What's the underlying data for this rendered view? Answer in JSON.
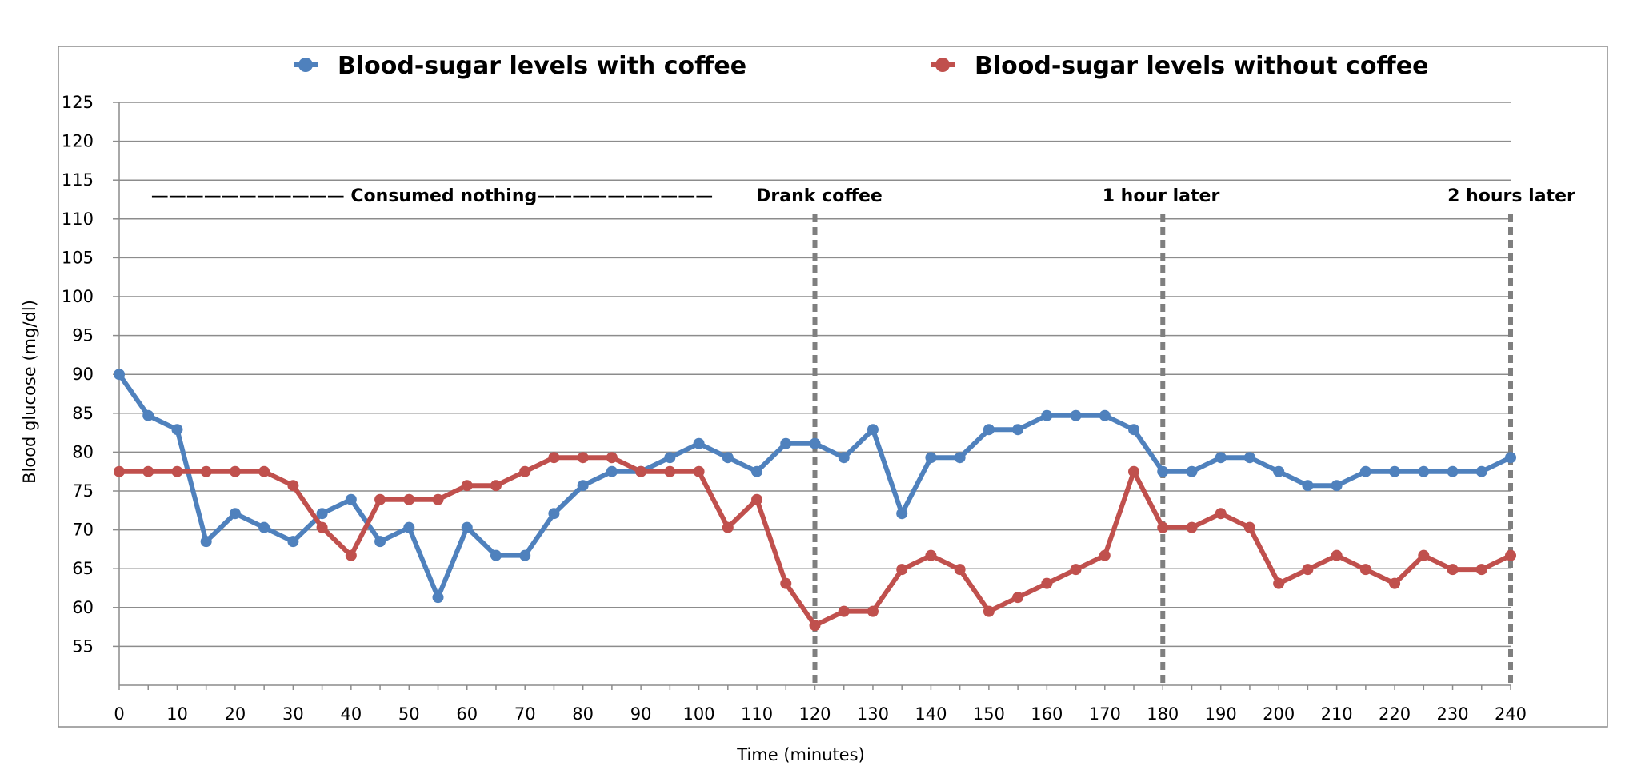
{
  "chart_data": {
    "type": "line",
    "title": "",
    "xlabel": "Time (minutes)",
    "ylabel": "Blood glucose (mg/dl)",
    "xlim": [
      0,
      240
    ],
    "ylim": [
      50,
      125
    ],
    "x_ticks": [
      0,
      10,
      20,
      30,
      40,
      50,
      60,
      70,
      80,
      90,
      100,
      110,
      120,
      130,
      140,
      150,
      160,
      170,
      180,
      190,
      200,
      210,
      220,
      230,
      240
    ],
    "y_ticks": [
      55,
      60,
      65,
      70,
      75,
      80,
      85,
      90,
      95,
      100,
      105,
      110,
      115,
      120,
      125
    ],
    "grid": true,
    "legend_position": "top",
    "x": [
      0,
      5,
      10,
      15,
      20,
      25,
      30,
      35,
      40,
      45,
      50,
      55,
      60,
      65,
      70,
      75,
      80,
      85,
      90,
      95,
      100,
      105,
      110,
      115,
      120,
      125,
      130,
      135,
      140,
      145,
      150,
      155,
      160,
      165,
      170,
      175,
      180,
      185,
      190,
      195,
      200,
      205,
      210,
      215,
      220,
      225,
      230,
      235,
      240
    ],
    "series": [
      {
        "name": "Blood-sugar levels with coffee",
        "color": "#4F81BD",
        "values": [
          90,
          84.7,
          82.9,
          68.5,
          72.1,
          70.3,
          68.5,
          72.1,
          73.9,
          68.5,
          70.3,
          61.3,
          70.3,
          66.7,
          66.7,
          72.1,
          75.7,
          77.5,
          77.5,
          79.3,
          81.1,
          79.3,
          77.5,
          81.1,
          81.1,
          79.3,
          82.9,
          72.1,
          79.3,
          79.3,
          82.9,
          82.9,
          84.7,
          84.7,
          84.7,
          82.9,
          77.5,
          77.5,
          79.3,
          79.3,
          77.5,
          75.7,
          75.7,
          77.5,
          77.5,
          77.5,
          77.5,
          77.5,
          79.3
        ]
      },
      {
        "name": "Blood-sugar levels without coffee",
        "color": "#C0504D",
        "values": [
          77.5,
          77.5,
          77.5,
          77.5,
          77.5,
          77.5,
          75.7,
          70.3,
          66.7,
          73.9,
          73.9,
          73.9,
          75.7,
          75.7,
          77.5,
          79.3,
          79.3,
          79.3,
          77.5,
          77.5,
          77.5,
          70.3,
          73.9,
          63.1,
          57.7,
          59.5,
          59.5,
          64.9,
          66.7,
          64.9,
          59.5,
          61.3,
          63.1,
          64.9,
          66.7,
          77.5,
          70.3,
          70.3,
          72.1,
          70.3,
          63.1,
          64.9,
          66.7,
          64.9,
          63.1,
          66.7,
          64.9,
          64.9,
          66.7
        ]
      }
    ],
    "annotations": [
      {
        "text": "——————————— Consumed nothing——————————",
        "x": 0
      },
      {
        "text": "Drank coffee",
        "x": 120
      },
      {
        "text": "1 hour later",
        "x": 180
      },
      {
        "text": "2 hours later",
        "x": 240
      }
    ],
    "marker_lines_x": [
      120,
      180,
      240
    ]
  }
}
